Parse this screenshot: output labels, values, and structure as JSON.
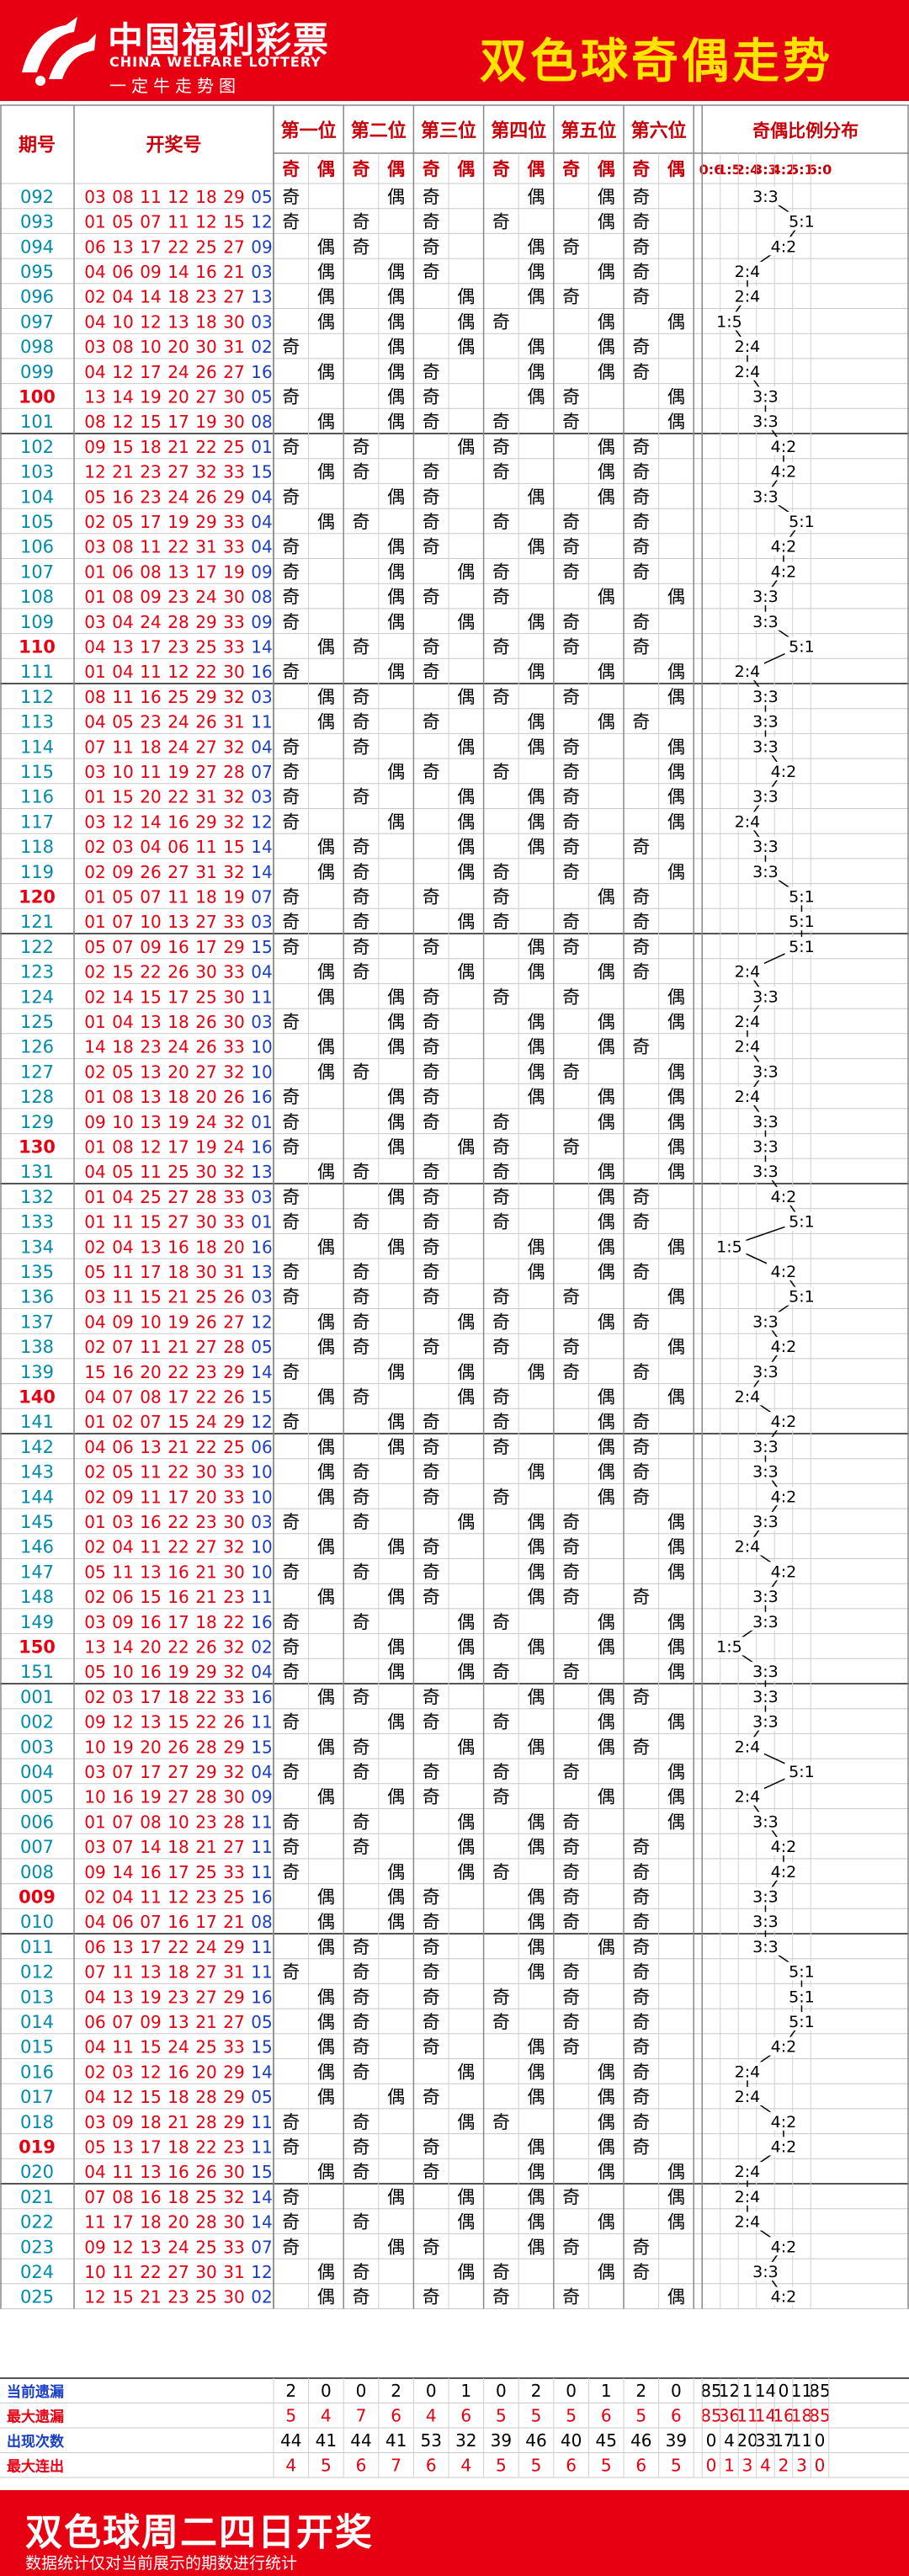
{
  "header": {
    "logo_cn": "中国福利彩票",
    "logo_en": "CHINA WELFARE LOTTERY",
    "logo_slogan": "一定牛走势图",
    "title": "双色球奇偶走势"
  },
  "footer": {
    "title": "双色球周二四日开奖",
    "note": "数据统计仅对当前展示的期数进行统计"
  },
  "colors": {
    "brand_red": "#e60012",
    "title_yellow": "#ffe400",
    "issue_teal": "#008ca8",
    "issue_red": "#e60012",
    "red_ball": "#e60012",
    "blue_ball": "#1a3fc4",
    "header_text": "#c8000a"
  },
  "chart_data": {
    "type": "table",
    "columns": {
      "issue": "期号",
      "numbers": "开奖号",
      "positions": [
        "第一位",
        "第二位",
        "第三位",
        "第四位",
        "第五位",
        "第六位"
      ],
      "odd_label": "奇",
      "even_label": "偶",
      "ratio_title": "奇偶比例分布",
      "ratios": [
        "0:6",
        "1:5",
        "2:4",
        "3:3",
        "4:2",
        "5:1",
        "6:0"
      ]
    },
    "rows": [
      {
        "issue": "092",
        "red": [
          "03",
          "08",
          "11",
          "12",
          "18",
          "29"
        ],
        "blue": "05"
      },
      {
        "issue": "093",
        "red": [
          "01",
          "05",
          "07",
          "11",
          "12",
          "15"
        ],
        "blue": "12"
      },
      {
        "issue": "094",
        "red": [
          "06",
          "13",
          "17",
          "22",
          "25",
          "27"
        ],
        "blue": "09"
      },
      {
        "issue": "095",
        "red": [
          "04",
          "06",
          "09",
          "14",
          "16",
          "21"
        ],
        "blue": "03"
      },
      {
        "issue": "096",
        "red": [
          "02",
          "04",
          "14",
          "18",
          "23",
          "27"
        ],
        "blue": "13"
      },
      {
        "issue": "097",
        "red": [
          "04",
          "10",
          "12",
          "13",
          "18",
          "30"
        ],
        "blue": "03"
      },
      {
        "issue": "098",
        "red": [
          "03",
          "08",
          "10",
          "20",
          "30",
          "31"
        ],
        "blue": "02"
      },
      {
        "issue": "099",
        "red": [
          "04",
          "12",
          "17",
          "24",
          "26",
          "27"
        ],
        "blue": "16"
      },
      {
        "issue": "100",
        "red": [
          "13",
          "14",
          "19",
          "20",
          "27",
          "30"
        ],
        "blue": "05"
      },
      {
        "issue": "101",
        "red": [
          "08",
          "12",
          "15",
          "17",
          "19",
          "30"
        ],
        "blue": "08"
      },
      {
        "issue": "102",
        "red": [
          "09",
          "15",
          "18",
          "21",
          "22",
          "25"
        ],
        "blue": "01"
      },
      {
        "issue": "103",
        "red": [
          "12",
          "21",
          "23",
          "27",
          "32",
          "33"
        ],
        "blue": "15"
      },
      {
        "issue": "104",
        "red": [
          "05",
          "16",
          "23",
          "24",
          "26",
          "29"
        ],
        "blue": "04"
      },
      {
        "issue": "105",
        "red": [
          "02",
          "05",
          "17",
          "19",
          "29",
          "33"
        ],
        "blue": "04"
      },
      {
        "issue": "106",
        "red": [
          "03",
          "08",
          "11",
          "22",
          "31",
          "33"
        ],
        "blue": "04"
      },
      {
        "issue": "107",
        "red": [
          "01",
          "06",
          "08",
          "13",
          "17",
          "19"
        ],
        "blue": "09"
      },
      {
        "issue": "108",
        "red": [
          "01",
          "08",
          "09",
          "23",
          "24",
          "30"
        ],
        "blue": "08"
      },
      {
        "issue": "109",
        "red": [
          "03",
          "04",
          "24",
          "28",
          "29",
          "33"
        ],
        "blue": "09"
      },
      {
        "issue": "110",
        "red": [
          "04",
          "13",
          "17",
          "23",
          "25",
          "33"
        ],
        "blue": "14"
      },
      {
        "issue": "111",
        "red": [
          "01",
          "04",
          "11",
          "12",
          "22",
          "30"
        ],
        "blue": "16"
      },
      {
        "issue": "112",
        "red": [
          "08",
          "11",
          "16",
          "25",
          "29",
          "32"
        ],
        "blue": "03"
      },
      {
        "issue": "113",
        "red": [
          "04",
          "05",
          "23",
          "24",
          "26",
          "31"
        ],
        "blue": "11"
      },
      {
        "issue": "114",
        "red": [
          "07",
          "11",
          "18",
          "24",
          "27",
          "32"
        ],
        "blue": "04"
      },
      {
        "issue": "115",
        "red": [
          "03",
          "10",
          "11",
          "19",
          "27",
          "28"
        ],
        "blue": "07"
      },
      {
        "issue": "116",
        "red": [
          "01",
          "15",
          "20",
          "22",
          "31",
          "32"
        ],
        "blue": "03"
      },
      {
        "issue": "117",
        "red": [
          "03",
          "12",
          "14",
          "16",
          "29",
          "32"
        ],
        "blue": "12"
      },
      {
        "issue": "118",
        "red": [
          "02",
          "03",
          "04",
          "06",
          "11",
          "15"
        ],
        "blue": "14"
      },
      {
        "issue": "119",
        "red": [
          "02",
          "09",
          "26",
          "27",
          "31",
          "32"
        ],
        "blue": "14"
      },
      {
        "issue": "120",
        "red": [
          "01",
          "05",
          "07",
          "11",
          "18",
          "19"
        ],
        "blue": "07"
      },
      {
        "issue": "121",
        "red": [
          "01",
          "07",
          "10",
          "13",
          "27",
          "33"
        ],
        "blue": "03"
      },
      {
        "issue": "122",
        "red": [
          "05",
          "07",
          "09",
          "16",
          "17",
          "29"
        ],
        "blue": "15"
      },
      {
        "issue": "123",
        "red": [
          "02",
          "15",
          "22",
          "26",
          "30",
          "33"
        ],
        "blue": "04"
      },
      {
        "issue": "124",
        "red": [
          "02",
          "14",
          "15",
          "17",
          "25",
          "30"
        ],
        "blue": "11"
      },
      {
        "issue": "125",
        "red": [
          "01",
          "04",
          "13",
          "18",
          "26",
          "30"
        ],
        "blue": "03"
      },
      {
        "issue": "126",
        "red": [
          "14",
          "18",
          "23",
          "24",
          "26",
          "33"
        ],
        "blue": "10"
      },
      {
        "issue": "127",
        "red": [
          "02",
          "05",
          "13",
          "20",
          "27",
          "32"
        ],
        "blue": "10"
      },
      {
        "issue": "128",
        "red": [
          "01",
          "08",
          "13",
          "18",
          "20",
          "26"
        ],
        "blue": "16"
      },
      {
        "issue": "129",
        "red": [
          "09",
          "10",
          "13",
          "19",
          "24",
          "32"
        ],
        "blue": "01"
      },
      {
        "issue": "130",
        "red": [
          "01",
          "08",
          "12",
          "17",
          "19",
          "24"
        ],
        "blue": "16"
      },
      {
        "issue": "131",
        "red": [
          "04",
          "05",
          "11",
          "25",
          "30",
          "32"
        ],
        "blue": "13"
      },
      {
        "issue": "132",
        "red": [
          "01",
          "04",
          "25",
          "27",
          "28",
          "33"
        ],
        "blue": "03"
      },
      {
        "issue": "133",
        "red": [
          "01",
          "11",
          "15",
          "27",
          "30",
          "33"
        ],
        "blue": "01"
      },
      {
        "issue": "134",
        "red": [
          "02",
          "04",
          "13",
          "16",
          "18",
          "20"
        ],
        "blue": "16"
      },
      {
        "issue": "135",
        "red": [
          "05",
          "11",
          "17",
          "18",
          "30",
          "31"
        ],
        "blue": "13"
      },
      {
        "issue": "136",
        "red": [
          "03",
          "11",
          "15",
          "21",
          "25",
          "26"
        ],
        "blue": "03"
      },
      {
        "issue": "137",
        "red": [
          "04",
          "09",
          "10",
          "19",
          "26",
          "27"
        ],
        "blue": "12"
      },
      {
        "issue": "138",
        "red": [
          "02",
          "07",
          "11",
          "21",
          "27",
          "28"
        ],
        "blue": "05"
      },
      {
        "issue": "139",
        "red": [
          "15",
          "16",
          "20",
          "22",
          "23",
          "29"
        ],
        "blue": "14"
      },
      {
        "issue": "140",
        "red": [
          "04",
          "07",
          "08",
          "17",
          "22",
          "26"
        ],
        "blue": "15"
      },
      {
        "issue": "141",
        "red": [
          "01",
          "02",
          "07",
          "15",
          "24",
          "29"
        ],
        "blue": "12"
      },
      {
        "issue": "142",
        "red": [
          "04",
          "06",
          "13",
          "21",
          "22",
          "25"
        ],
        "blue": "06"
      },
      {
        "issue": "143",
        "red": [
          "02",
          "05",
          "11",
          "22",
          "30",
          "33"
        ],
        "blue": "10"
      },
      {
        "issue": "144",
        "red": [
          "02",
          "09",
          "11",
          "17",
          "20",
          "33"
        ],
        "blue": "10"
      },
      {
        "issue": "145",
        "red": [
          "01",
          "03",
          "16",
          "22",
          "23",
          "30"
        ],
        "blue": "03"
      },
      {
        "issue": "146",
        "red": [
          "02",
          "04",
          "11",
          "22",
          "27",
          "32"
        ],
        "blue": "10"
      },
      {
        "issue": "147",
        "red": [
          "05",
          "11",
          "13",
          "16",
          "21",
          "30"
        ],
        "blue": "10"
      },
      {
        "issue": "148",
        "red": [
          "02",
          "06",
          "15",
          "16",
          "21",
          "23"
        ],
        "blue": "11"
      },
      {
        "issue": "149",
        "red": [
          "03",
          "09",
          "16",
          "17",
          "18",
          "22"
        ],
        "blue": "16"
      },
      {
        "issue": "150",
        "red": [
          "13",
          "14",
          "20",
          "22",
          "26",
          "32"
        ],
        "blue": "02"
      },
      {
        "issue": "151",
        "red": [
          "05",
          "10",
          "16",
          "19",
          "29",
          "32"
        ],
        "blue": "04"
      },
      {
        "issue": "001",
        "red": [
          "02",
          "03",
          "17",
          "18",
          "22",
          "33"
        ],
        "blue": "16"
      },
      {
        "issue": "002",
        "red": [
          "09",
          "12",
          "13",
          "15",
          "22",
          "26"
        ],
        "blue": "11"
      },
      {
        "issue": "003",
        "red": [
          "10",
          "19",
          "20",
          "26",
          "28",
          "29"
        ],
        "blue": "15"
      },
      {
        "issue": "004",
        "red": [
          "03",
          "07",
          "17",
          "27",
          "29",
          "32"
        ],
        "blue": "04"
      },
      {
        "issue": "005",
        "red": [
          "10",
          "16",
          "19",
          "27",
          "28",
          "30"
        ],
        "blue": "09"
      },
      {
        "issue": "006",
        "red": [
          "01",
          "07",
          "08",
          "10",
          "23",
          "28"
        ],
        "blue": "11"
      },
      {
        "issue": "007",
        "red": [
          "03",
          "07",
          "14",
          "18",
          "21",
          "27"
        ],
        "blue": "11"
      },
      {
        "issue": "008",
        "red": [
          "09",
          "14",
          "16",
          "17",
          "25",
          "33"
        ],
        "blue": "11"
      },
      {
        "issue": "009",
        "red": [
          "02",
          "04",
          "11",
          "12",
          "23",
          "25"
        ],
        "blue": "16"
      },
      {
        "issue": "010",
        "red": [
          "04",
          "06",
          "07",
          "16",
          "17",
          "21"
        ],
        "blue": "08"
      },
      {
        "issue": "011",
        "red": [
          "06",
          "13",
          "17",
          "22",
          "24",
          "29"
        ],
        "blue": "11"
      },
      {
        "issue": "012",
        "red": [
          "07",
          "11",
          "13",
          "18",
          "27",
          "31"
        ],
        "blue": "11"
      },
      {
        "issue": "013",
        "red": [
          "04",
          "13",
          "19",
          "23",
          "27",
          "29"
        ],
        "blue": "16"
      },
      {
        "issue": "014",
        "red": [
          "06",
          "07",
          "09",
          "13",
          "21",
          "27"
        ],
        "blue": "05"
      },
      {
        "issue": "015",
        "red": [
          "04",
          "11",
          "15",
          "24",
          "25",
          "33"
        ],
        "blue": "15"
      },
      {
        "issue": "016",
        "red": [
          "02",
          "03",
          "12",
          "16",
          "20",
          "29"
        ],
        "blue": "14"
      },
      {
        "issue": "017",
        "red": [
          "04",
          "12",
          "15",
          "18",
          "28",
          "29"
        ],
        "blue": "05"
      },
      {
        "issue": "018",
        "red": [
          "03",
          "09",
          "18",
          "21",
          "28",
          "29"
        ],
        "blue": "11"
      },
      {
        "issue": "019",
        "red": [
          "05",
          "13",
          "17",
          "18",
          "22",
          "23"
        ],
        "blue": "11"
      },
      {
        "issue": "020",
        "red": [
          "04",
          "11",
          "13",
          "16",
          "26",
          "30"
        ],
        "blue": "15"
      },
      {
        "issue": "021",
        "red": [
          "07",
          "08",
          "16",
          "18",
          "25",
          "32"
        ],
        "blue": "14"
      },
      {
        "issue": "022",
        "red": [
          "11",
          "17",
          "18",
          "20",
          "28",
          "30"
        ],
        "blue": "14"
      },
      {
        "issue": "023",
        "red": [
          "09",
          "12",
          "13",
          "24",
          "25",
          "33"
        ],
        "blue": "07"
      },
      {
        "issue": "024",
        "red": [
          "10",
          "11",
          "22",
          "27",
          "30",
          "31"
        ],
        "blue": "12"
      },
      {
        "issue": "025",
        "red": [
          "12",
          "15",
          "21",
          "23",
          "25",
          "30"
        ],
        "blue": "02"
      }
    ],
    "red_issue_rows": [
      "100",
      "110",
      "120",
      "130",
      "140",
      "150",
      "009",
      "019"
    ],
    "stats": [
      {
        "label": "当前遗漏",
        "values": [
          2,
          0,
          0,
          2,
          0,
          1,
          0,
          2,
          0,
          1,
          2,
          0,
          85,
          12,
          1,
          14,
          0,
          11,
          85
        ]
      },
      {
        "label": "最大遗漏",
        "values": [
          5,
          4,
          7,
          6,
          4,
          6,
          5,
          5,
          5,
          6,
          5,
          6,
          85,
          36,
          11,
          14,
          16,
          18,
          85
        ]
      },
      {
        "label": "出现次数",
        "values": [
          44,
          41,
          44,
          41,
          53,
          32,
          39,
          46,
          40,
          45,
          46,
          39,
          0,
          4,
          20,
          33,
          17,
          11,
          0
        ]
      },
      {
        "label": "最大连出",
        "values": [
          4,
          5,
          6,
          7,
          6,
          4,
          5,
          5,
          6,
          5,
          6,
          5,
          0,
          1,
          3,
          4,
          2,
          3,
          0
        ]
      }
    ]
  }
}
